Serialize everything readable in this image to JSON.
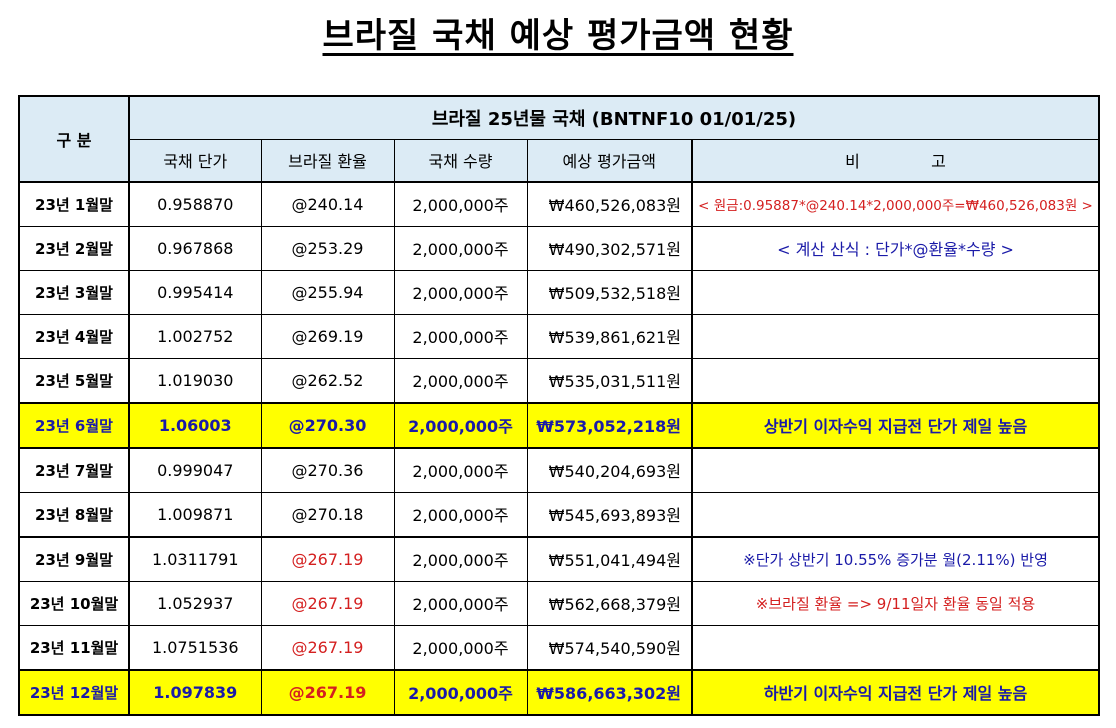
{
  "title": "브라질 국채 예상 평가금액 현황",
  "table": {
    "gubun_label": "구  분",
    "group_header": "브라질 25년물 국채 (BNTNF10 01/01/25)",
    "columns": [
      "국채 단가",
      "브라질 환율",
      "국채 수량",
      "예상 평가금액",
      "비              고"
    ],
    "rows": [
      {
        "period": "23년 1월말",
        "price": "0.958870",
        "rate": "@240.14",
        "qty": "2,000,000주",
        "amount": "₩460,526,083원",
        "note": "< 원금:0.95887*@240.14*2,000,000주=₩460,526,083원 >"
      },
      {
        "period": "23년 2월말",
        "price": "0.967868",
        "rate": "@253.29",
        "qty": "2,000,000주",
        "amount": "₩490,302,571원",
        "note": "< 계산 산식 : 단가*@환율*수량 >"
      },
      {
        "period": "23년 3월말",
        "price": "0.995414",
        "rate": "@255.94",
        "qty": "2,000,000주",
        "amount": "₩509,532,518원",
        "note": ""
      },
      {
        "period": "23년 4월말",
        "price": "1.002752",
        "rate": "@269.19",
        "qty": "2,000,000주",
        "amount": "₩539,861,621원",
        "note": ""
      },
      {
        "period": "23년 5월말",
        "price": "1.019030",
        "rate": "@262.52",
        "qty": "2,000,000주",
        "amount": "₩535,031,511원",
        "note": ""
      },
      {
        "period": "23년 6월말",
        "price": "1.06003",
        "rate": "@270.30",
        "qty": "2,000,000주",
        "amount": "₩573,052,218원",
        "note": "상반기 이자수익 지급전 단가 제일 높음"
      },
      {
        "period": "23년 7월말",
        "price": "0.999047",
        "rate": "@270.36",
        "qty": "2,000,000주",
        "amount": "₩540,204,693원",
        "note": ""
      },
      {
        "period": "23년 8월말",
        "price": "1.009871",
        "rate": "@270.18",
        "qty": "2,000,000주",
        "amount": "₩545,693,893원",
        "note": ""
      },
      {
        "period": "23년 9월말",
        "price": "1.0311791",
        "rate": "@267.19",
        "qty": "2,000,000주",
        "amount": "₩551,041,494원",
        "note": "※단가 상반기 10.55% 증가분 월(2.11%) 반영"
      },
      {
        "period": "23년 10월말",
        "price": "1.052937",
        "rate": "@267.19",
        "qty": "2,000,000주",
        "amount": "₩562,668,379원",
        "note": "※브라질 환율 => 9/11일자 환율 동일 적용"
      },
      {
        "period": "23년 11월말",
        "price": "1.0751536",
        "rate": "@267.19",
        "qty": "2,000,000주",
        "amount": "₩574,540,590원",
        "note": ""
      },
      {
        "period": "23년 12월말",
        "price": "1.097839",
        "rate": "@267.19",
        "qty": "2,000,000주",
        "amount": "₩586,663,302원",
        "note": "하반기 이자수익 지급전 단가 제일 높음"
      }
    ]
  },
  "colors": {
    "header_bg": "#dcebf5",
    "highlight_bg": "#ffff00",
    "highlight_text": "#1a1aa8",
    "red_text": "#d42020",
    "blue_text": "#1a1aa8"
  }
}
